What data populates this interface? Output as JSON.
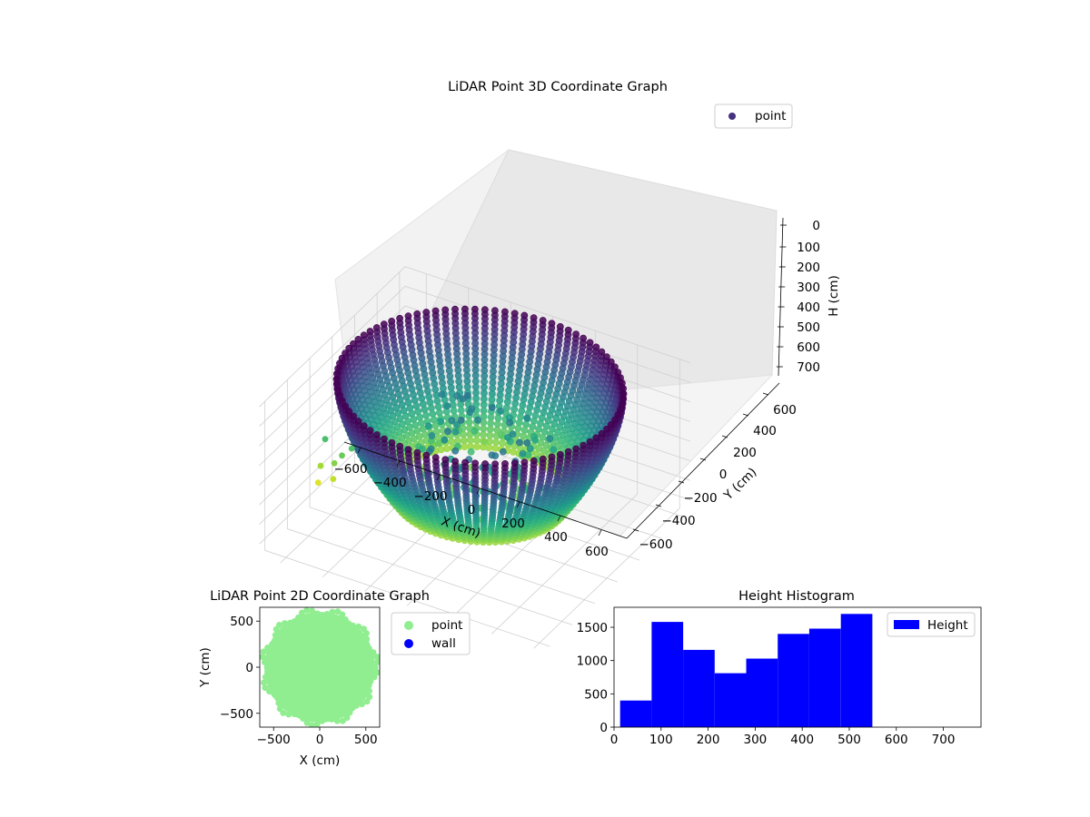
{
  "chart_data": [
    {
      "type": "scatter3d",
      "title": "LiDAR Point 3D Coordinate Graph",
      "xlabel": "X (cm)",
      "ylabel": "Y (cm)",
      "zlabel": "H (cm)",
      "xlim": [
        -700,
        650
      ],
      "ylim": [
        -650,
        650
      ],
      "zlim": [
        0,
        760
      ],
      "z_inverted": true,
      "xticks": [
        -600,
        -400,
        -200,
        0,
        200,
        400,
        600
      ],
      "yticks": [
        -600,
        -400,
        -200,
        0,
        200,
        400,
        600
      ],
      "zticks": [
        0,
        100,
        200,
        300,
        400,
        500,
        600,
        700
      ],
      "legend": {
        "entries": [
          "point"
        ],
        "placement": "top-right"
      },
      "colormap": "viridis",
      "series": [
        {
          "name": "point",
          "structure": "approx. 10000 points on a bowl-shaped ring of radius ~600 cm, height 0–550 cm, colored by height",
          "outliers": [
            {
              "x": -680,
              "y": -100,
              "h": 460
            },
            {
              "x": -670,
              "y": -160,
              "h": 560
            },
            {
              "x": -660,
              "y": -200,
              "h": 620
            },
            {
              "x": -610,
              "y": -150,
              "h": 530
            },
            {
              "x": -600,
              "y": -180,
              "h": 590
            },
            {
              "x": -590,
              "y": -120,
              "h": 500
            },
            {
              "x": -560,
              "y": -90,
              "h": 470
            }
          ]
        }
      ],
      "grid": true
    },
    {
      "type": "scatter",
      "title": "LiDAR Point 2D Coordinate Graph",
      "xlabel": "X (cm)",
      "ylabel": "Y (cm)",
      "xlim": [
        -650,
        650
      ],
      "ylim": [
        -650,
        650
      ],
      "xticks": [
        -500,
        0,
        500
      ],
      "yticks": [
        -500,
        0,
        500
      ],
      "legend": {
        "entries": [
          "point",
          "wall"
        ],
        "placement": "outside-right"
      },
      "series": [
        {
          "name": "point",
          "color": "#90ee90",
          "shape": "filled disc",
          "center": [
            0,
            0
          ],
          "radius": 600
        },
        {
          "name": "wall",
          "color": "#0000ff",
          "points": []
        }
      ]
    },
    {
      "type": "bar",
      "title": "Height Histogram",
      "xlabel": "",
      "ylabel": "",
      "xlim": [
        0,
        780
      ],
      "ylim": [
        0,
        1800
      ],
      "xticks": [
        0,
        100,
        200,
        300,
        400,
        500,
        600,
        700
      ],
      "yticks": [
        0,
        500,
        1000,
        1500
      ],
      "legend": {
        "entries": [
          "Height"
        ],
        "placement": "top-right"
      },
      "series": [
        {
          "name": "Height",
          "color": "#0000ff",
          "bin_edges": [
            13,
            80,
            147,
            214,
            281,
            348,
            415,
            482,
            549
          ],
          "values": [
            400,
            1580,
            1160,
            810,
            1030,
            1400,
            1480,
            1700
          ]
        }
      ]
    }
  ]
}
